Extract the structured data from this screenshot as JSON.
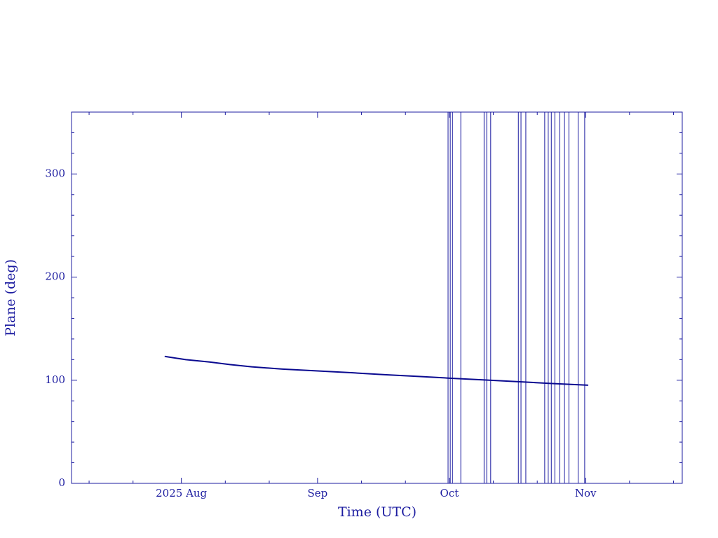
{
  "chart_data": {
    "type": "line",
    "xlabel": "Time (UTC)",
    "ylabel": "Plane (deg)",
    "xlim": [
      188,
      327
    ],
    "ylim": [
      0,
      360
    ],
    "xticks": [
      {
        "value": 213,
        "label": "2025 Aug"
      },
      {
        "value": 244,
        "label": "Sep"
      },
      {
        "value": 274,
        "label": "Oct"
      },
      {
        "value": 305,
        "label": "Nov"
      }
    ],
    "xminorticks": [
      192,
      202,
      223,
      233,
      254,
      264,
      284,
      294,
      315,
      325
    ],
    "yticks": [
      0,
      100,
      200,
      300
    ],
    "yminorticks": [
      20,
      40,
      60,
      80,
      120,
      140,
      160,
      180,
      220,
      240,
      260,
      280,
      320,
      340
    ],
    "series": [
      {
        "color": "#0a0a90",
        "x": [
          209.2,
          214,
          219.4,
          224,
          229,
          236,
          244,
          252,
          259.3,
          267,
          274,
          282,
          289.7,
          297,
          305.6
        ],
        "values": [
          123.1,
          120,
          117.7,
          115.2,
          113,
          110.8,
          109,
          107.2,
          105.4,
          103.7,
          102,
          100.3,
          98.6,
          96.9,
          95.2
        ]
      }
    ],
    "spikes": {
      "color": "#1c1ca0",
      "x": [
        273.7,
        274.2,
        274.7,
        276.6,
        281.9,
        282.5,
        283.4,
        289.7,
        290.3,
        291.4,
        295.7,
        296.5,
        297.2,
        298.0,
        299.1,
        300.2,
        301.2,
        303.3,
        304.8
      ]
    }
  }
}
